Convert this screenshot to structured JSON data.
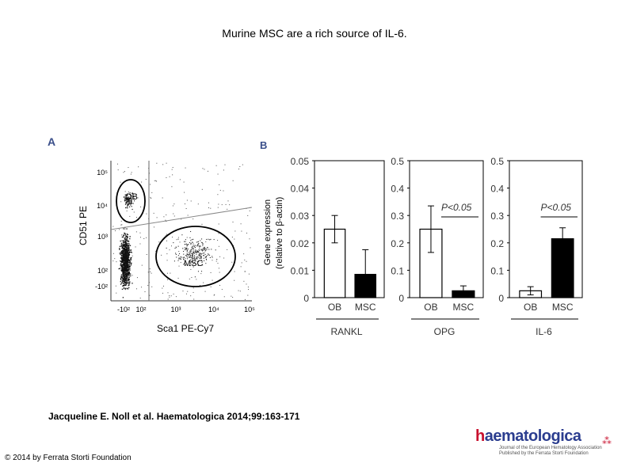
{
  "title": "Murine MSC are a rich source of IL-6.",
  "citation": "Jacqueline E. Noll et al. Haematologica 2014;99:163-171",
  "copyright": "© 2014 by Ferrata Storti Foundation",
  "logo": {
    "name_h": "h",
    "name_rest": "aematologica",
    "sub_line1": "Journal of the European Hematology Association",
    "sub_line2": "Published by the Ferrata Storti Foundation"
  },
  "colors": {
    "panel_letter": "#3a4f8a",
    "msc_bar": "#000000",
    "ob_bar": "#ffffff"
  },
  "panel_a": {
    "letter": "A",
    "type": "flow-cytometry-dotplot",
    "ylabel": "CD51 PE",
    "xlabel": "Sca1 PE-Cy7",
    "yticks": [
      "10⁵",
      "10⁴",
      "10³",
      "10²",
      "-10²"
    ],
    "xticks": [
      "-10²",
      "10²",
      "10³",
      "10⁴",
      "10⁵"
    ],
    "gates": [
      "OB",
      "MSC"
    ]
  },
  "panel_b": {
    "letter": "B",
    "ylabel_line1": "Gene expression",
    "ylabel_line2": "(relative to β-actin)"
  },
  "chart_data": [
    {
      "type": "bar",
      "title": "RANKL",
      "categories": [
        "OB",
        "MSC"
      ],
      "values": [
        0.025,
        0.0085
      ],
      "errors": [
        0.005,
        0.009
      ],
      "ylim": [
        0,
        0.05
      ],
      "yticks": [
        "0",
        "0.01",
        "0.02",
        "0.03",
        "0.04",
        "0.05"
      ],
      "ylabel": "Gene expression (relative to β-actin)",
      "annotation": ""
    },
    {
      "type": "bar",
      "title": "OPG",
      "categories": [
        "OB",
        "MSC"
      ],
      "values": [
        0.25,
        0.025
      ],
      "errors": [
        0.085,
        0.018
      ],
      "ylim": [
        0,
        0.5
      ],
      "yticks": [
        "0",
        "0.1",
        "0.2",
        "0.3",
        "0.4",
        "0.5"
      ],
      "annotation": "P<0.05"
    },
    {
      "type": "bar",
      "title": "IL-6",
      "categories": [
        "OB",
        "MSC"
      ],
      "values": [
        0.025,
        0.215
      ],
      "errors": [
        0.015,
        0.04
      ],
      "ylim": [
        0,
        0.5
      ],
      "yticks": [
        "0",
        "0.1",
        "0.2",
        "0.3",
        "0.4",
        "0.5"
      ],
      "annotation": "P<0.05"
    }
  ]
}
